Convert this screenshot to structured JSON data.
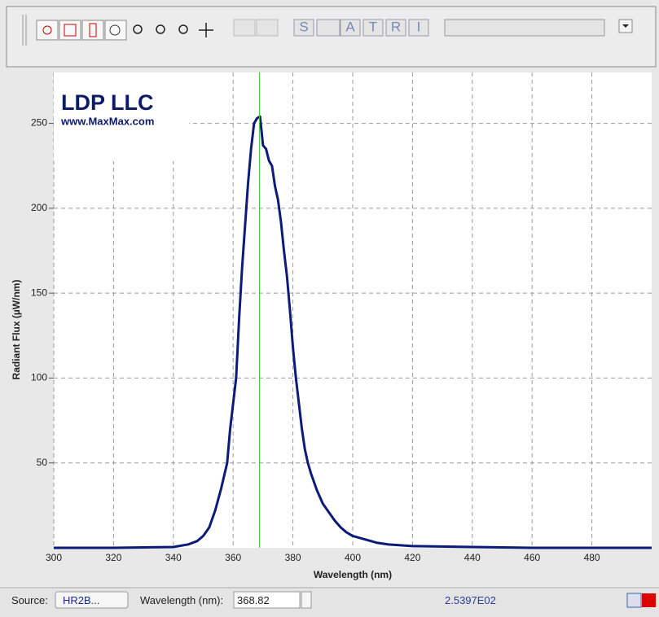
{
  "toolbar": {
    "letters": [
      "S",
      "A",
      "T",
      "R",
      "I"
    ]
  },
  "logo": {
    "title": "LDP LLC",
    "url": "www.MaxMax.com"
  },
  "chart_data": {
    "type": "line",
    "x_label": "Wavelength (nm)",
    "y_label": "Radiant Flux (µW/nm)",
    "x": [
      300,
      320,
      340,
      345,
      348,
      350,
      352,
      354,
      356,
      358,
      359,
      360,
      361,
      362,
      363,
      364,
      365,
      366,
      367,
      368,
      369,
      370,
      371,
      372,
      373,
      374,
      375,
      376,
      377,
      378,
      379,
      380,
      381,
      382,
      383,
      384,
      385,
      386,
      388,
      390,
      392,
      394,
      396,
      398,
      400,
      404,
      408,
      412,
      420,
      440,
      460,
      500
    ],
    "values": [
      0,
      0,
      0.5,
      2,
      4,
      7,
      12,
      22,
      35,
      50,
      70,
      85,
      100,
      135,
      165,
      190,
      215,
      235,
      250,
      253,
      254,
      237,
      235,
      228,
      225,
      213,
      205,
      192,
      175,
      160,
      140,
      118,
      100,
      85,
      70,
      58,
      50,
      44,
      34,
      26,
      21,
      16,
      12,
      9,
      7,
      5,
      3,
      2,
      1,
      0.5,
      0,
      0
    ],
    "color": "#0c1a78",
    "xlim": [
      300,
      500
    ],
    "ylim": [
      0,
      280
    ],
    "xticks": [
      300,
      320,
      340,
      360,
      380,
      400,
      420,
      440,
      460,
      480
    ],
    "yticks": [
      50,
      100,
      150,
      200,
      250
    ],
    "grid": true,
    "cursor_x": 368.82,
    "cursor_color": "#33cc33"
  },
  "status_bar": {
    "source_label": "Source:",
    "source_value": "HR2B...",
    "wavelength_label": "Wavelength (nm):",
    "readout": "2.5397E02"
  }
}
